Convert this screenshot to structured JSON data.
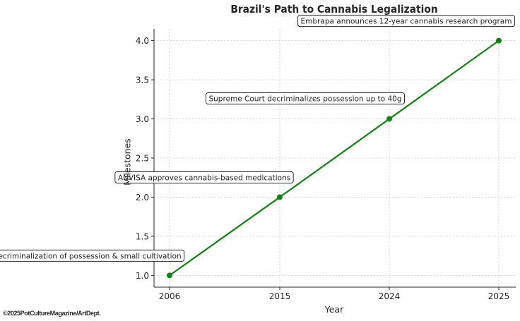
{
  "chart_data": {
    "type": "line",
    "title": "Brazil's Path to Cannabis Legalization",
    "xlabel": "Year",
    "ylabel": "Milestones",
    "categories": [
      "2006",
      "2015",
      "2024",
      "2025"
    ],
    "values": [
      1,
      2,
      3,
      4
    ],
    "annotations": [
      "Decriminalization of possession & small cultivation",
      "ANVISA approves cannabis-based medications",
      "Supreme Court decriminalizes possession up to 40g",
      "Embrapa announces 12-year cannabis research program"
    ],
    "ylim": [
      0.85,
      4.15
    ],
    "yticks": [
      1.0,
      1.5,
      2.0,
      2.5,
      3.0,
      3.5,
      4.0
    ],
    "ytick_labels": [
      "1.0",
      "1.5",
      "2.0",
      "2.5",
      "3.0",
      "3.5",
      "4.0"
    ],
    "grid": true,
    "line_color": "#148214"
  },
  "credit": "©2025PotCultureMagazine/ArtDept."
}
